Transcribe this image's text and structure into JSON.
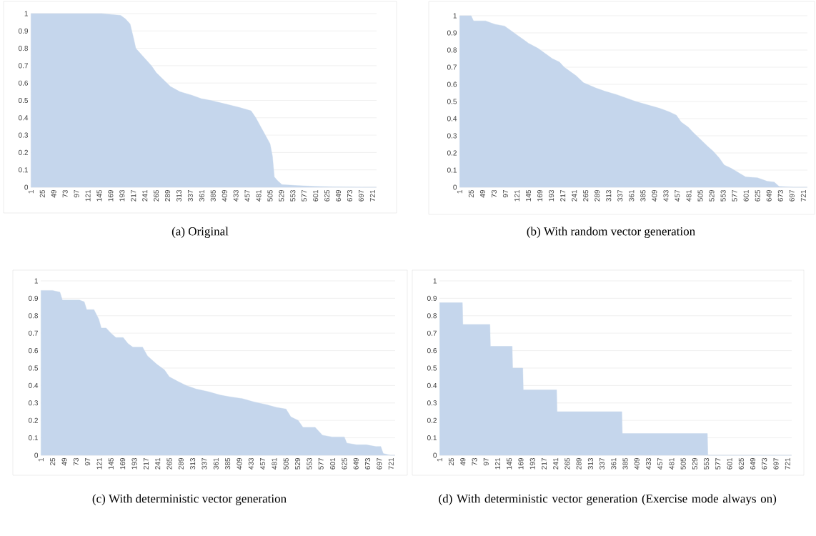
{
  "chart_data": [
    {
      "type": "area",
      "title": "(a) Original",
      "color": "#c5d6ec",
      "grid": "y",
      "xlim": [
        0.5,
        729.5
      ],
      "ylim": [
        0,
        1
      ],
      "xticks": [
        1,
        25,
        49,
        73,
        97,
        121,
        145,
        169,
        193,
        217,
        241,
        265,
        289,
        313,
        337,
        361,
        385,
        409,
        433,
        457,
        481,
        505,
        529,
        553,
        577,
        601,
        625,
        649,
        673,
        697,
        721
      ],
      "yticks": [
        0,
        0.1,
        0.2,
        0.3,
        0.4,
        0.5,
        0.6,
        0.7,
        0.8,
        0.9,
        1
      ],
      "x": [
        1,
        150,
        190,
        200,
        210,
        218,
        222,
        235,
        255,
        265,
        280,
        295,
        315,
        340,
        360,
        380,
        410,
        440,
        465,
        475,
        485,
        495,
        505,
        510,
        514,
        520,
        530,
        560,
        600,
        640,
        700,
        729
      ],
      "values": [
        1,
        1,
        0.99,
        0.97,
        0.94,
        0.85,
        0.8,
        0.76,
        0.7,
        0.66,
        0.62,
        0.58,
        0.55,
        0.53,
        0.51,
        0.5,
        0.48,
        0.46,
        0.44,
        0.4,
        0.35,
        0.3,
        0.25,
        0.18,
        0.06,
        0.04,
        0.015,
        0.01,
        0.005,
        0.002,
        0,
        0
      ]
    },
    {
      "type": "area",
      "title": "(b) With random vector generation",
      "color": "#c5d6ec",
      "grid": "y",
      "xlim": [
        0.5,
        729.5
      ],
      "ylim": [
        0,
        1
      ],
      "xticks": [
        1,
        25,
        49,
        73,
        97,
        121,
        145,
        169,
        193,
        217,
        241,
        265,
        289,
        313,
        337,
        361,
        385,
        409,
        433,
        457,
        481,
        505,
        529,
        553,
        577,
        601,
        625,
        649,
        673,
        697,
        721
      ],
      "yticks": [
        0,
        0.1,
        0.2,
        0.3,
        0.4,
        0.5,
        0.6,
        0.7,
        0.8,
        0.9,
        1
      ],
      "x": [
        1,
        25,
        30,
        55,
        75,
        95,
        105,
        120,
        135,
        145,
        165,
        180,
        195,
        210,
        220,
        230,
        245,
        260,
        285,
        305,
        330,
        350,
        370,
        395,
        420,
        440,
        455,
        465,
        480,
        490,
        505,
        520,
        532,
        545,
        555,
        570,
        585,
        600,
        625,
        645,
        660,
        670,
        700,
        729
      ],
      "values": [
        1,
        1,
        0.97,
        0.97,
        0.95,
        0.94,
        0.92,
        0.89,
        0.86,
        0.84,
        0.81,
        0.78,
        0.75,
        0.73,
        0.7,
        0.68,
        0.65,
        0.61,
        0.58,
        0.56,
        0.54,
        0.52,
        0.5,
        0.48,
        0.46,
        0.44,
        0.42,
        0.38,
        0.35,
        0.32,
        0.28,
        0.24,
        0.21,
        0.17,
        0.13,
        0.11,
        0.085,
        0.06,
        0.055,
        0.035,
        0.03,
        0.005,
        0,
        0
      ]
    },
    {
      "type": "area",
      "title": "(c) With deterministic vector generation",
      "color": "#c5d6ec",
      "grid": "y",
      "xlim": [
        0.5,
        729.5
      ],
      "ylim": [
        0,
        1
      ],
      "xticks": [
        1,
        25,
        49,
        73,
        97,
        121,
        145,
        169,
        193,
        217,
        241,
        265,
        289,
        313,
        337,
        361,
        385,
        409,
        433,
        457,
        481,
        505,
        529,
        553,
        577,
        601,
        625,
        649,
        673,
        697,
        721
      ],
      "yticks": [
        0,
        0.1,
        0.2,
        0.3,
        0.4,
        0.5,
        0.6,
        0.7,
        0.8,
        0.9,
        1
      ],
      "x": [
        1,
        25,
        40,
        45,
        80,
        90,
        95,
        110,
        120,
        125,
        135,
        145,
        155,
        170,
        180,
        190,
        210,
        220,
        240,
        255,
        265,
        285,
        300,
        320,
        345,
        370,
        390,
        415,
        440,
        465,
        485,
        505,
        515,
        530,
        540,
        565,
        580,
        600,
        625,
        630,
        650,
        670,
        690,
        700,
        705,
        720,
        729
      ],
      "values": [
        0.945,
        0.945,
        0.935,
        0.89,
        0.89,
        0.88,
        0.835,
        0.835,
        0.78,
        0.73,
        0.73,
        0.7,
        0.675,
        0.675,
        0.64,
        0.62,
        0.62,
        0.57,
        0.52,
        0.49,
        0.45,
        0.42,
        0.4,
        0.38,
        0.365,
        0.345,
        0.335,
        0.325,
        0.305,
        0.29,
        0.275,
        0.265,
        0.22,
        0.2,
        0.16,
        0.16,
        0.115,
        0.105,
        0.105,
        0.07,
        0.06,
        0.06,
        0.05,
        0.05,
        0.01,
        0,
        0
      ]
    },
    {
      "type": "area",
      "title": "(d) With deterministic vector generation (Exercise mode always on)",
      "color": "#c5d6ec",
      "grid": "y",
      "xlim": [
        0.5,
        729.5
      ],
      "ylim": [
        0,
        1
      ],
      "xticks": [
        1,
        25,
        49,
        73,
        97,
        121,
        145,
        169,
        193,
        217,
        241,
        265,
        289,
        313,
        337,
        361,
        385,
        409,
        433,
        457,
        481,
        505,
        529,
        553,
        577,
        601,
        625,
        649,
        673,
        697,
        721
      ],
      "yticks": [
        0,
        0.1,
        0.2,
        0.3,
        0.4,
        0.5,
        0.6,
        0.7,
        0.8,
        0.9,
        1
      ],
      "x": [
        1,
        48,
        49,
        105,
        106,
        151,
        152,
        173,
        174,
        243,
        244,
        378,
        379,
        555,
        556,
        729
      ],
      "values": [
        0.875,
        0.875,
        0.75,
        0.75,
        0.625,
        0.625,
        0.5,
        0.5,
        0.375,
        0.375,
        0.25,
        0.25,
        0.125,
        0.125,
        0,
        0
      ]
    }
  ]
}
